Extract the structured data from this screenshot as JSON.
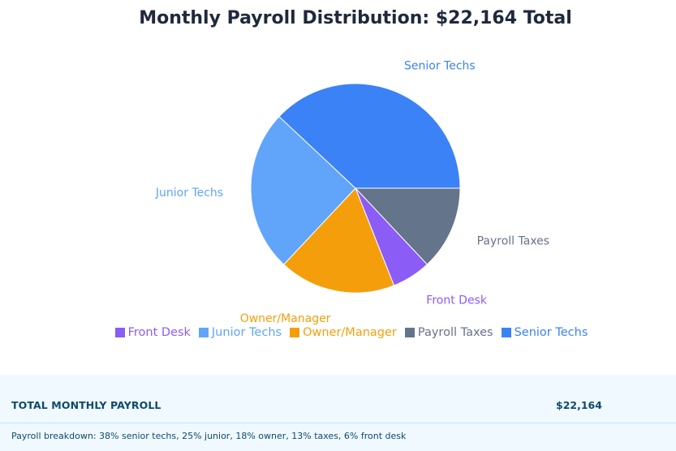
{
  "chart_data": {
    "type": "pie",
    "title": "Monthly Payroll Distribution: $22,164 Total",
    "categories": [
      "Front Desk",
      "Junior Techs",
      "Owner/Manager",
      "Payroll Taxes",
      "Senior Techs"
    ],
    "values": [
      6,
      25,
      18,
      13,
      38
    ],
    "legend": {
      "placement": "bottom",
      "items": [
        "Front Desk",
        "Junior Techs",
        "Owner/Manager",
        "Payroll Taxes",
        "Senior Techs"
      ]
    },
    "slice_labels": [
      "Senior Techs",
      "Payroll Taxes",
      "Front Desk",
      "Owner/Manager",
      "Junior Techs"
    ]
  },
  "colors": {
    "Front Desk": "#8b5cf6",
    "Junior Techs": "#60a5fa",
    "Owner/Manager": "#f59e0b",
    "Payroll Taxes": "#64748b",
    "Senior Techs": "#3b82f6"
  },
  "summary": {
    "label": "TOTAL MONTHLY PAYROLL",
    "value": "$22,164",
    "note": "Payroll breakdown: 38% senior techs, 25% junior, 18% owner, 13% taxes, 6% front desk"
  }
}
